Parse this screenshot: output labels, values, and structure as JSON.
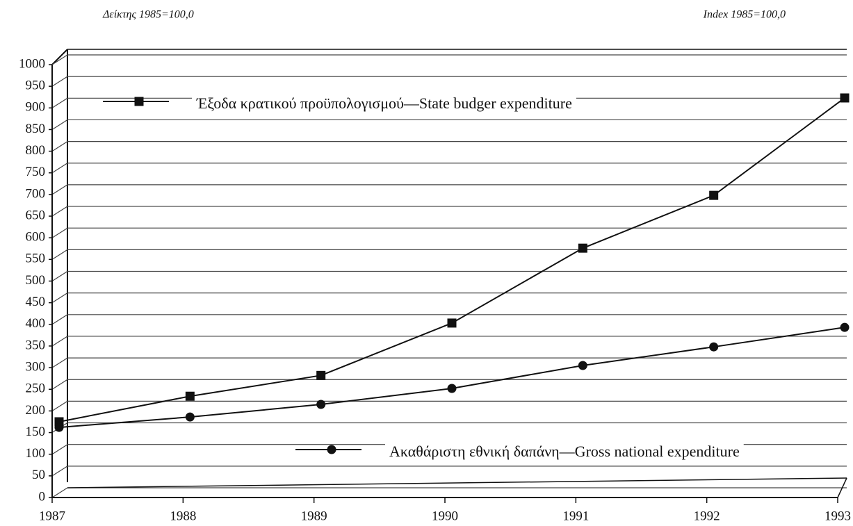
{
  "chart_data": {
    "type": "line",
    "header_left": "Δείκτης 1985=100,0",
    "header_right": "Index 1985=100,0",
    "categories": [
      "1987",
      "1988",
      "1989",
      "1990",
      "1991",
      "1992",
      "1993"
    ],
    "series": [
      {
        "name": "Έξοδα κρατικού προϋπολογισμού—State budger expenditure",
        "color": "#111111",
        "marker": "square",
        "values": [
          175,
          234,
          282,
          403,
          576,
          698,
          923
        ]
      },
      {
        "name": "Ακαθάριστη εθνική δαπάνη—Gross national expenditure",
        "color": "#111111",
        "marker": "circle",
        "values": [
          162,
          186,
          215,
          252,
          305,
          348,
          393
        ]
      }
    ],
    "ylim": [
      0,
      1000
    ],
    "yticks": [
      0,
      50,
      100,
      150,
      200,
      250,
      300,
      350,
      400,
      450,
      500,
      550,
      600,
      650,
      700,
      750,
      800,
      850,
      900,
      950,
      1000
    ],
    "grid": true
  }
}
